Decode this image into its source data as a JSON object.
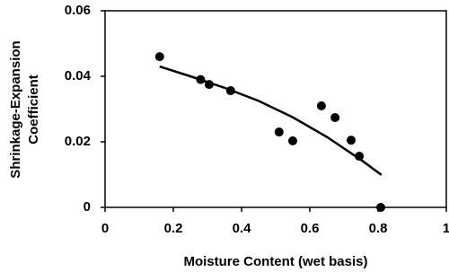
{
  "chart_data": {
    "type": "scatter",
    "xlabel": "Moisture Content (wet basis)",
    "ylabel": [
      "Shrinkage-Expansion",
      "Coefficient"
    ],
    "xlim": [
      0,
      1
    ],
    "xticks": [
      0,
      0.2,
      0.4,
      0.6,
      0.8,
      1
    ],
    "ylim": [
      0,
      0.06
    ],
    "yticks": [
      0,
      0.02,
      0.04,
      0.06
    ],
    "grid": false,
    "series": [
      {
        "type": "scatter",
        "color": "#000000",
        "x": [
          0.16,
          0.28,
          0.305,
          0.368,
          0.51,
          0.55,
          0.634,
          0.674,
          0.721,
          0.745,
          0.808
        ],
        "values": [
          0.046,
          0.039,
          0.0375,
          0.0356,
          0.023,
          0.0203,
          0.031,
          0.0274,
          0.0205,
          0.0156,
          0
        ]
      },
      {
        "type": "line",
        "color": "#000000",
        "x": [
          0.16,
          0.25,
          0.35,
          0.45,
          0.55,
          0.65,
          0.75,
          0.81
        ],
        "values": [
          0.043,
          0.04,
          0.0365,
          0.0325,
          0.0275,
          0.0215,
          0.0145,
          0.0099
        ]
      }
    ]
  }
}
